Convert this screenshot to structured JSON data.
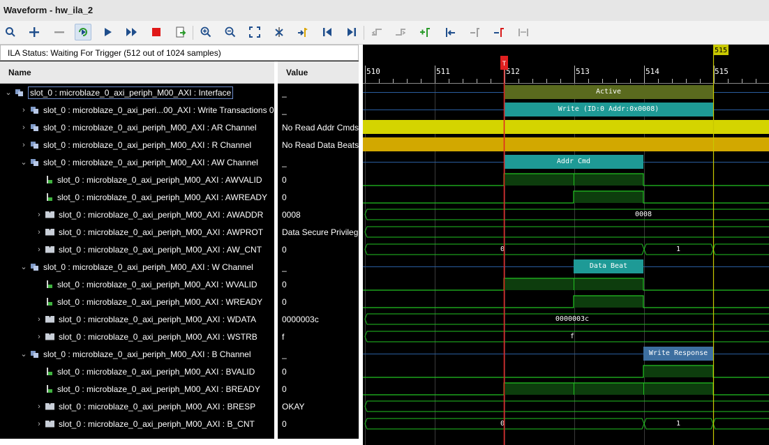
{
  "window": {
    "title": "Waveform - hw_ila_2"
  },
  "toolbar": {
    "icons": [
      "search-icon",
      "zoom-in-plus-icon",
      "zoom-out-minus-icon",
      "run-trigger-immediate-icon",
      "run-trigger-icon",
      "auto-rearm-icon",
      "stop-icon",
      "export-icon",
      "zoom-in-icon",
      "zoom-out-icon",
      "zoom-fit-icon",
      "cursor-delete-icon",
      "add-marker-icon",
      "go-to-start-icon",
      "go-to-end-icon",
      "previous-transition-icon",
      "next-transition-icon",
      "add-marker-plus-icon",
      "previous-marker-icon",
      "next-marker-icon",
      "trigger-marker-icon",
      "swap-cursors-icon"
    ]
  },
  "status": {
    "text": "ILA Status: Waiting For Trigger (512 out of 1024 samples)"
  },
  "columns": {
    "name": "Name",
    "value": "Value"
  },
  "marker_label": "T",
  "cursor_label": "515",
  "time_axis": {
    "ticks": [
      "510",
      "511",
      "512",
      "513",
      "514",
      "515"
    ]
  },
  "rows": [
    {
      "name": "slot_0 : microblaze_0_axi_periph_M00_AXI : Interface",
      "value": "_",
      "level": 0,
      "icon": "bus",
      "expand": "open"
    },
    {
      "name": "slot_0 : microblaze_0_axi_peri...00_AXI : Write Transactions 0",
      "value": "_",
      "level": 1,
      "icon": "bus",
      "expand": "closed"
    },
    {
      "name": "slot_0 : microblaze_0_axi_periph_M00_AXI : AR Channel",
      "value": "No Read Addr Cmds",
      "level": 1,
      "icon": "bus",
      "expand": "closed"
    },
    {
      "name": "slot_0 : microblaze_0_axi_periph_M00_AXI : R Channel",
      "value": "No Read Data Beats",
      "level": 1,
      "icon": "bus",
      "expand": "closed"
    },
    {
      "name": "slot_0 : microblaze_0_axi_periph_M00_AXI : AW Channel",
      "value": "_",
      "level": 1,
      "icon": "bus",
      "expand": "open"
    },
    {
      "name": "slot_0 : microblaze_0_axi_periph_M00_AXI : AWVALID",
      "value": "0",
      "level": 2,
      "icon": "sig",
      "expand": "none"
    },
    {
      "name": "slot_0 : microblaze_0_axi_periph_M00_AXI : AWREADY",
      "value": "0",
      "level": 2,
      "icon": "sig",
      "expand": "none"
    },
    {
      "name": "slot_0 : microblaze_0_axi_periph_M00_AXI : AWADDR",
      "value": "0008",
      "level": 2,
      "icon": "vec",
      "expand": "closed"
    },
    {
      "name": "slot_0 : microblaze_0_axi_periph_M00_AXI : AWPROT",
      "value": "Data Secure Privileg",
      "level": 2,
      "icon": "vec",
      "expand": "closed"
    },
    {
      "name": "slot_0 : microblaze_0_axi_periph_M00_AXI : AW_CNT",
      "value": "0",
      "level": 2,
      "icon": "vec",
      "expand": "closed"
    },
    {
      "name": "slot_0 : microblaze_0_axi_periph_M00_AXI : W Channel",
      "value": "_",
      "level": 1,
      "icon": "bus",
      "expand": "open"
    },
    {
      "name": "slot_0 : microblaze_0_axi_periph_M00_AXI : WVALID",
      "value": "0",
      "level": 2,
      "icon": "sig",
      "expand": "none"
    },
    {
      "name": "slot_0 : microblaze_0_axi_periph_M00_AXI : WREADY",
      "value": "0",
      "level": 2,
      "icon": "sig",
      "expand": "none"
    },
    {
      "name": "slot_0 : microblaze_0_axi_periph_M00_AXI : WDATA",
      "value": "0000003c",
      "level": 2,
      "icon": "vec",
      "expand": "closed"
    },
    {
      "name": "slot_0 : microblaze_0_axi_periph_M00_AXI : WSTRB",
      "value": "f",
      "level": 2,
      "icon": "vec",
      "expand": "closed"
    },
    {
      "name": "slot_0 : microblaze_0_axi_periph_M00_AXI : B Channel",
      "value": "_",
      "level": 1,
      "icon": "bus",
      "expand": "open"
    },
    {
      "name": "slot_0 : microblaze_0_axi_periph_M00_AXI : BVALID",
      "value": "0",
      "level": 2,
      "icon": "sig",
      "expand": "none"
    },
    {
      "name": "slot_0 : microblaze_0_axi_periph_M00_AXI : BREADY",
      "value": "0",
      "level": 2,
      "icon": "sig",
      "expand": "none"
    },
    {
      "name": "slot_0 : microblaze_0_axi_periph_M00_AXI : BRESP",
      "value": "OKAY",
      "level": 2,
      "icon": "vec",
      "expand": "closed"
    },
    {
      "name": "slot_0 : microblaze_0_axi_periph_M00_AXI : B_CNT",
      "value": "0",
      "level": 2,
      "icon": "vec",
      "expand": "closed"
    }
  ],
  "waves": {
    "row_0": {
      "label": "Active"
    },
    "row_1": {
      "label": "Write (ID:0 Addr:0x0008)"
    },
    "row_4": {
      "label": "Addr Cmd"
    },
    "row_7": {
      "label": "0008"
    },
    "row_9": {
      "label_a": "0",
      "label_b": "1"
    },
    "row_10": {
      "label": "Data Beat"
    },
    "row_13": {
      "label": "0000003c"
    },
    "row_14": {
      "label": "f"
    },
    "row_15": {
      "label": "Write Response"
    },
    "row_19": {
      "label_a": "0",
      "label_b": "1"
    }
  },
  "colors": {
    "grid": "#3a3a3a",
    "green": "#22c322",
    "dark_fill": "#0d3d0d",
    "olive": "#5a6a1e",
    "teal": "#1e9a96",
    "yellow": "#d4d400",
    "gold": "#d2a800",
    "blue": "#3d6fa0",
    "marker": "#e02020",
    "cursor": "#c8c800"
  }
}
